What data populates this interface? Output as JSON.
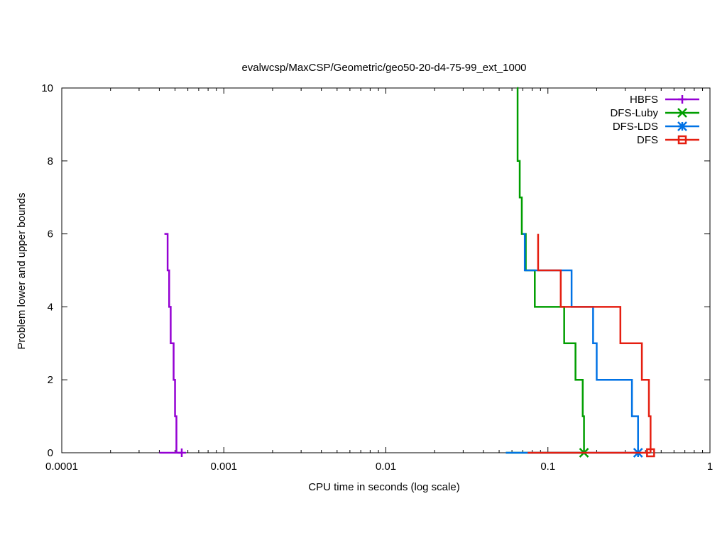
{
  "chart_data": {
    "type": "line",
    "title": "evalwcsp/MaxCSP/Geometric/geo50-20-d4-75-99_ext_1000",
    "xlabel": "CPU time in seconds (log scale)",
    "ylabel": "Problem lower and upper bounds",
    "x_scale": "log",
    "xlim": [
      0.0001,
      1
    ],
    "ylim": [
      0,
      10
    ],
    "x_ticks": [
      0.0001,
      0.001,
      0.01,
      0.1,
      1
    ],
    "x_tick_labels": [
      "0.0001",
      "0.001",
      "0.01",
      "0.1",
      "1"
    ],
    "y_ticks": [
      0,
      2,
      4,
      6,
      8,
      10
    ],
    "y_tick_labels": [
      "0",
      "2",
      "4",
      "6",
      "8",
      "10"
    ],
    "grid": false,
    "legend_position": "top-right",
    "series": [
      {
        "name": "HBFS",
        "color": "#9400d3",
        "marker": "plus",
        "upper": [
          [
            0.00043,
            6
          ],
          [
            0.00045,
            5
          ],
          [
            0.00046,
            4
          ],
          [
            0.00047,
            3
          ],
          [
            0.00049,
            2
          ],
          [
            0.0005,
            1
          ],
          [
            0.00051,
            0
          ]
        ],
        "lower": [
          [
            0.0004,
            0
          ],
          [
            0.00055,
            0
          ]
        ],
        "marker_point": [
          0.00055,
          0
        ]
      },
      {
        "name": "DFS-Luby",
        "color": "#009e00",
        "marker": "cross",
        "upper": [
          [
            0.0645,
            10
          ],
          [
            0.065,
            8
          ],
          [
            0.067,
            7
          ],
          [
            0.069,
            6
          ],
          [
            0.073,
            5
          ],
          [
            0.083,
            4
          ],
          [
            0.126,
            3
          ],
          [
            0.148,
            2
          ],
          [
            0.164,
            1
          ],
          [
            0.167,
            0
          ]
        ],
        "lower": [
          [
            0.055,
            0
          ],
          [
            0.167,
            0
          ]
        ],
        "marker_point": [
          0.167,
          0
        ]
      },
      {
        "name": "DFS-LDS",
        "color": "#0072e5",
        "marker": "asterisk",
        "upper": [
          [
            0.07,
            6
          ],
          [
            0.072,
            5
          ],
          [
            0.14,
            4
          ],
          [
            0.19,
            3
          ],
          [
            0.2,
            2
          ],
          [
            0.33,
            1
          ],
          [
            0.36,
            0
          ]
        ],
        "lower": [
          [
            0.055,
            0
          ],
          [
            0.36,
            0
          ]
        ],
        "marker_point": [
          0.36,
          0
        ]
      },
      {
        "name": "DFS",
        "color": "#e51e10",
        "marker": "square",
        "upper": [
          [
            0.087,
            6
          ],
          [
            0.087,
            5
          ],
          [
            0.12,
            4
          ],
          [
            0.19,
            4
          ],
          [
            0.28,
            3
          ],
          [
            0.38,
            2
          ],
          [
            0.42,
            1
          ],
          [
            0.43,
            0
          ]
        ],
        "lower": [
          [
            0.075,
            0
          ],
          [
            0.43,
            0
          ]
        ],
        "marker_point": [
          0.43,
          0
        ]
      }
    ]
  }
}
